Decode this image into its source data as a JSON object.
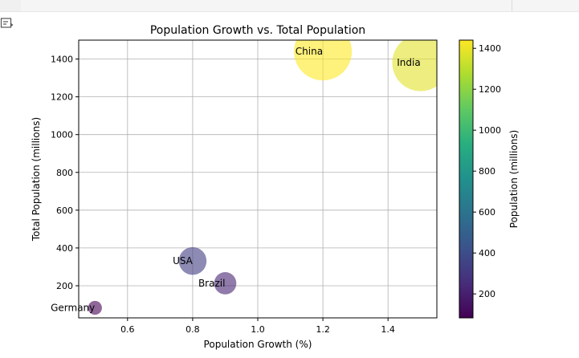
{
  "chart_data": {
    "type": "scatter",
    "title": "Population Growth vs. Total Population",
    "xlabel": "Population Growth (%)",
    "ylabel": "Total Population (millions)",
    "xlim": [
      0.45,
      1.55
    ],
    "ylim": [
      30,
      1500
    ],
    "xticks": [
      0.6,
      0.8,
      1.0,
      1.2,
      1.4
    ],
    "xtick_labels": [
      "0.6",
      "0.8",
      "1.0",
      "1.2",
      "1.4"
    ],
    "yticks": [
      200,
      400,
      600,
      800,
      1000,
      1200,
      1400
    ],
    "ytick_labels": [
      "200",
      "400",
      "600",
      "800",
      "1000",
      "1200",
      "1400"
    ],
    "grid": true,
    "colormap": "viridis",
    "colorbar": {
      "label": "Population (millions)",
      "range": [
        83,
        1440
      ],
      "ticks": [
        200,
        400,
        600,
        800,
        1000,
        1200,
        1400
      ],
      "tick_labels": [
        "200",
        "400",
        "600",
        "800",
        "1000",
        "1200",
        "1400"
      ]
    },
    "points": [
      {
        "label": "China",
        "x": 1.2,
        "y": 1440
      },
      {
        "label": "India",
        "x": 1.5,
        "y": 1380
      },
      {
        "label": "USA",
        "x": 0.8,
        "y": 331
      },
      {
        "label": "Brazil",
        "x": 0.9,
        "y": 213
      },
      {
        "label": "Germany",
        "x": 0.5,
        "y": 83
      }
    ]
  }
}
